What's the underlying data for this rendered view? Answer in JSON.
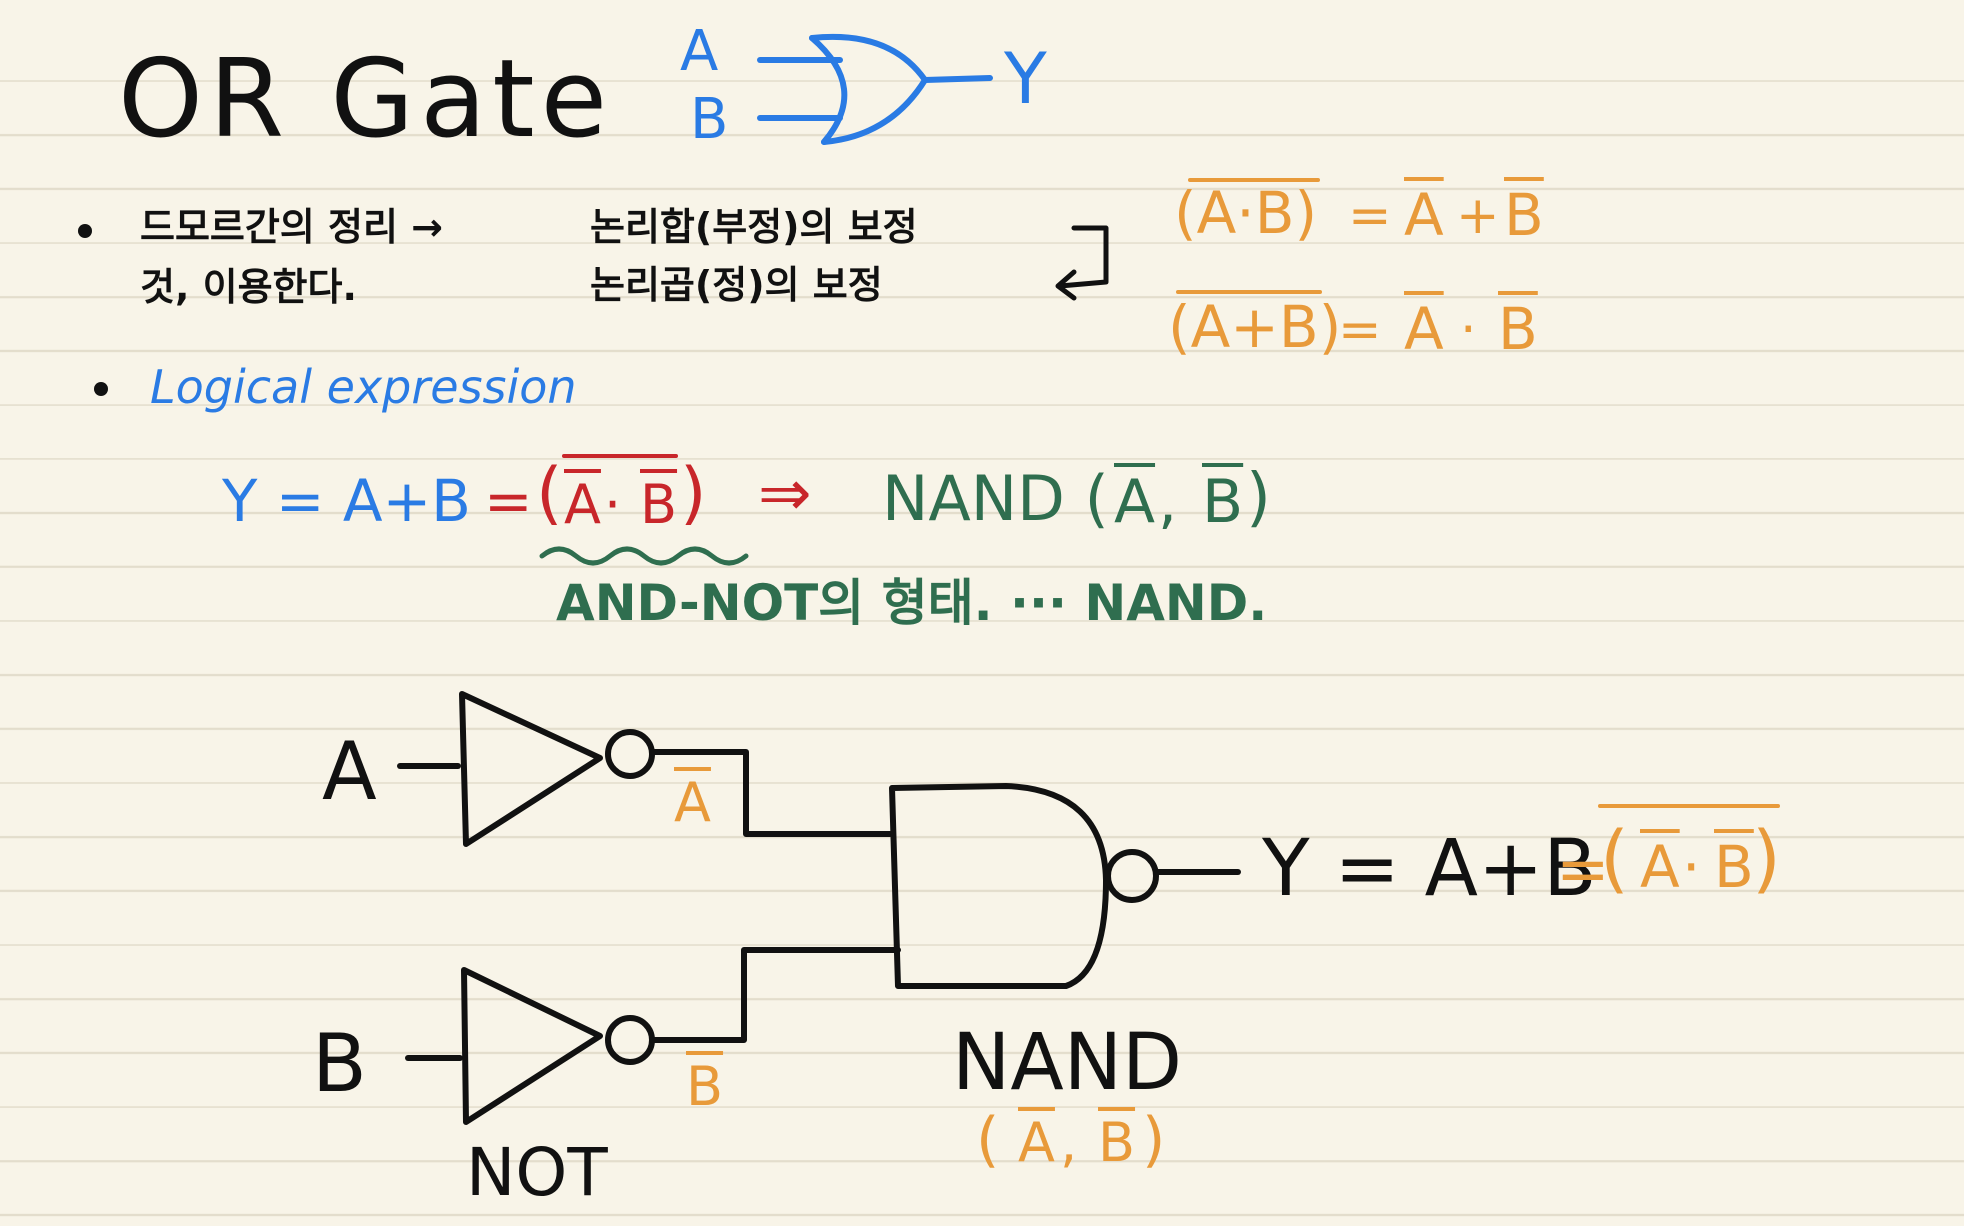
{
  "colors": {
    "ink": "#111111",
    "blue": "#2a7be4",
    "orange": "#e89a3a",
    "red": "#c8262a",
    "green": "#2f6e4f",
    "paper": "#f8f4e8"
  },
  "header": {
    "title": "OR Gate",
    "symbol": {
      "input_a": "A",
      "input_b": "B",
      "output": "Y"
    }
  },
  "bullet1": {
    "line1": "드모르간의 정리 →",
    "line2": "것, 이용한다.",
    "right_line1": "논리합(부정)의 보정",
    "right_line2": "논리곱(정)의 보정",
    "laws": [
      {
        "lhs": "(A·B)",
        "eq": "=",
        "rhs_a": "A",
        "op": "+",
        "rhs_b": "B"
      },
      {
        "lhs": "(A+B)",
        "eq": "=",
        "rhs_a": "A",
        "op": "·",
        "rhs_b": "B"
      }
    ]
  },
  "bullet2": {
    "label": "Logical expression",
    "expr_left": "Y = A+B",
    "expr_eq": "=",
    "expr_red_a": "A",
    "expr_red_dot": "·",
    "expr_red_b": "B",
    "arrow": "⇒",
    "nand_prefix": "NAND (",
    "nand_a": "A",
    "nand_comma": ",",
    "nand_b": "B",
    "nand_suffix": ")",
    "note": "AND-NOT의 형태. ··· NAND."
  },
  "circuit": {
    "input_a": "A",
    "input_b": "B",
    "not_a_out": "A",
    "not_b_out": "B",
    "not_label": "NOT",
    "nand_label": "NAND",
    "nand_args": {
      "a": "A",
      "comma": ",",
      "b": "B"
    },
    "output_expr": "Y = A+B",
    "output_eq": "=",
    "output_a": "A",
    "output_dot": "·",
    "output_b": "B"
  }
}
